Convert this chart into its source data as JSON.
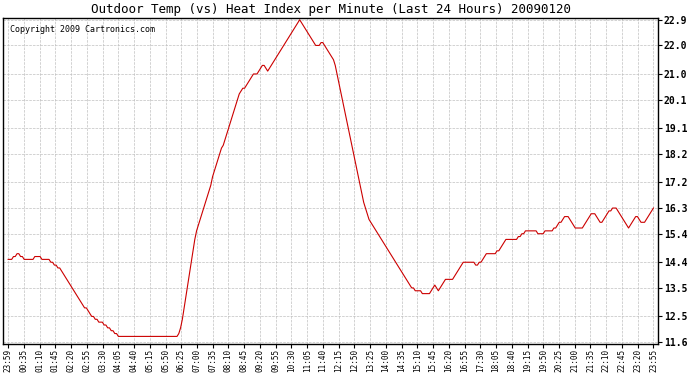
{
  "title": "Outdoor Temp (vs) Heat Index per Minute (Last 24 Hours) 20090120",
  "copyright": "Copyright 2009 Cartronics.com",
  "line_color": "#cc0000",
  "background_color": "#ffffff",
  "grid_color": "#c0c0c0",
  "yticks": [
    11.6,
    12.5,
    13.5,
    14.4,
    15.4,
    16.3,
    17.2,
    18.2,
    19.1,
    20.1,
    21.0,
    22.0,
    22.9
  ],
  "ylim": [
    11.6,
    22.9
  ],
  "xtick_labels": [
    "23:59",
    "00:35",
    "01:10",
    "01:45",
    "02:20",
    "02:55",
    "03:30",
    "04:05",
    "04:40",
    "05:15",
    "05:50",
    "06:25",
    "07:00",
    "07:35",
    "08:10",
    "08:45",
    "09:20",
    "09:55",
    "10:30",
    "11:05",
    "11:40",
    "12:15",
    "12:50",
    "13:25",
    "14:00",
    "14:35",
    "15:10",
    "15:45",
    "16:20",
    "16:55",
    "17:30",
    "18:05",
    "18:40",
    "19:15",
    "19:50",
    "20:25",
    "21:00",
    "21:35",
    "22:10",
    "22:45",
    "23:20",
    "23:55"
  ],
  "n_xticks": 42,
  "y_values": [
    14.5,
    14.5,
    14.5,
    14.6,
    14.6,
    14.7,
    14.7,
    14.6,
    14.6,
    14.5,
    14.5,
    14.5,
    14.5,
    14.5,
    14.5,
    14.6,
    14.6,
    14.6,
    14.6,
    14.5,
    14.5,
    14.5,
    14.5,
    14.5,
    14.4,
    14.4,
    14.3,
    14.3,
    14.2,
    14.2,
    14.1,
    14.0,
    13.9,
    13.8,
    13.7,
    13.6,
    13.5,
    13.4,
    13.3,
    13.2,
    13.1,
    13.0,
    12.9,
    12.8,
    12.8,
    12.7,
    12.6,
    12.5,
    12.5,
    12.4,
    12.4,
    12.3,
    12.3,
    12.3,
    12.2,
    12.2,
    12.1,
    12.1,
    12.0,
    12.0,
    11.9,
    11.9,
    11.8,
    11.8,
    11.8,
    11.8,
    11.8,
    11.8,
    11.8,
    11.8,
    11.8,
    11.8,
    11.8,
    11.8,
    11.8,
    11.8,
    11.8,
    11.8,
    11.8,
    11.8,
    11.8,
    11.8,
    11.8,
    11.8,
    11.8,
    11.8,
    11.8,
    11.8,
    11.8,
    11.8,
    11.8,
    11.8,
    11.8,
    11.8,
    11.8,
    11.8,
    11.9,
    12.1,
    12.4,
    12.8,
    13.2,
    13.6,
    14.0,
    14.4,
    14.8,
    15.2,
    15.5,
    15.7,
    15.9,
    16.1,
    16.3,
    16.5,
    16.7,
    16.9,
    17.1,
    17.4,
    17.6,
    17.8,
    18.0,
    18.2,
    18.4,
    18.5,
    18.7,
    18.9,
    19.1,
    19.3,
    19.5,
    19.7,
    19.9,
    20.1,
    20.3,
    20.4,
    20.5,
    20.5,
    20.6,
    20.7,
    20.8,
    20.9,
    21.0,
    21.0,
    21.0,
    21.1,
    21.2,
    21.3,
    21.3,
    21.2,
    21.1,
    21.2,
    21.3,
    21.4,
    21.5,
    21.6,
    21.7,
    21.8,
    21.9,
    22.0,
    22.1,
    22.2,
    22.3,
    22.4,
    22.5,
    22.6,
    22.7,
    22.8,
    22.9,
    22.8,
    22.7,
    22.6,
    22.5,
    22.4,
    22.3,
    22.2,
    22.1,
    22.0,
    22.0,
    22.0,
    22.1,
    22.1,
    22.0,
    21.9,
    21.8,
    21.7,
    21.6,
    21.5,
    21.3,
    21.0,
    20.7,
    20.4,
    20.1,
    19.8,
    19.5,
    19.2,
    18.9,
    18.6,
    18.3,
    18.0,
    17.7,
    17.4,
    17.1,
    16.8,
    16.5,
    16.3,
    16.1,
    15.9,
    15.8,
    15.7,
    15.6,
    15.5,
    15.4,
    15.3,
    15.2,
    15.1,
    15.0,
    14.9,
    14.8,
    14.7,
    14.6,
    14.5,
    14.4,
    14.3,
    14.2,
    14.1,
    14.0,
    13.9,
    13.8,
    13.7,
    13.6,
    13.5,
    13.5,
    13.4,
    13.4,
    13.4,
    13.4,
    13.3,
    13.3,
    13.3,
    13.3,
    13.3,
    13.4,
    13.5,
    13.6,
    13.5,
    13.4,
    13.5,
    13.6,
    13.7,
    13.8,
    13.8,
    13.8,
    13.8,
    13.8,
    13.9,
    14.0,
    14.1,
    14.2,
    14.3,
    14.4,
    14.4,
    14.4,
    14.4,
    14.4,
    14.4,
    14.4,
    14.3,
    14.3,
    14.4,
    14.4,
    14.5,
    14.6,
    14.7,
    14.7,
    14.7,
    14.7,
    14.7,
    14.7,
    14.8,
    14.8,
    14.9,
    15.0,
    15.1,
    15.2,
    15.2,
    15.2,
    15.2,
    15.2,
    15.2,
    15.2,
    15.3,
    15.3,
    15.4,
    15.4,
    15.5,
    15.5,
    15.5,
    15.5,
    15.5,
    15.5,
    15.5,
    15.4,
    15.4,
    15.4,
    15.4,
    15.5,
    15.5,
    15.5,
    15.5,
    15.5,
    15.6,
    15.6,
    15.7,
    15.8,
    15.8,
    15.9,
    16.0,
    16.0,
    16.0,
    15.9,
    15.8,
    15.7,
    15.6,
    15.6,
    15.6,
    15.6,
    15.6,
    15.7,
    15.8,
    15.9,
    16.0,
    16.1,
    16.1,
    16.1,
    16.0,
    15.9,
    15.8,
    15.8,
    15.9,
    16.0,
    16.1,
    16.2,
    16.2,
    16.3,
    16.3,
    16.3,
    16.2,
    16.1,
    16.0,
    15.9,
    15.8,
    15.7,
    15.6,
    15.7,
    15.8,
    15.9,
    16.0,
    16.0,
    15.9,
    15.8,
    15.8,
    15.8,
    15.9,
    16.0,
    16.1,
    16.2,
    16.3
  ]
}
